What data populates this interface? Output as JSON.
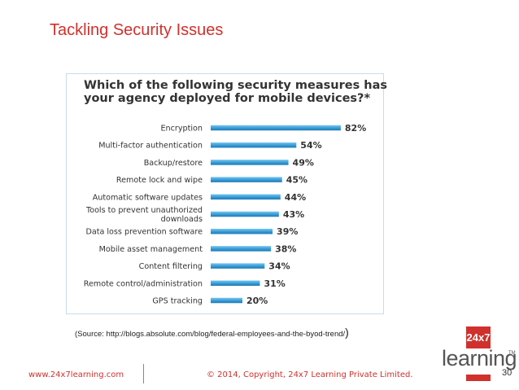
{
  "slide": {
    "title": "Tackling Security Issues",
    "source_text": "(Source: http://blogs.absolute.com/blog/federal-employees-and-the-byod-trend/",
    "source_paren": ")",
    "footer_url": "www.24x7learning.com",
    "footer_copyright": "© 2014, Copyright, 24x7 Learning Private Limited.",
    "page_number": "30",
    "logo": {
      "box_text": "24x7",
      "word": "learning",
      "tm": "TM",
      "accent_color": "#d0312d"
    }
  },
  "chart_data": {
    "type": "bar",
    "orientation": "horizontal",
    "title_lines": [
      "Which of the following security measures has",
      "your agency deployed for mobile devices?*"
    ],
    "categories": [
      [
        "Encryption"
      ],
      [
        "Multi-factor authentication"
      ],
      [
        "Backup/restore"
      ],
      [
        "Remote lock and wipe"
      ],
      [
        "Automatic software updates"
      ],
      [
        "Tools to prevent unauthorized",
        "downloads"
      ],
      [
        "Data loss prevention software"
      ],
      [
        "Mobile asset management"
      ],
      [
        "Content filtering"
      ],
      [
        "Remote control/administration"
      ],
      [
        "GPS tracking"
      ]
    ],
    "values": [
      82,
      54,
      49,
      45,
      44,
      43,
      39,
      38,
      34,
      31,
      20
    ],
    "value_labels": [
      "82%",
      "54%",
      "49%",
      "45%",
      "44%",
      "43%",
      "39%",
      "38%",
      "34%",
      "31%",
      "20%"
    ],
    "xlim": [
      0,
      100
    ],
    "grid": false,
    "bar_color": "#3a9fd8"
  }
}
